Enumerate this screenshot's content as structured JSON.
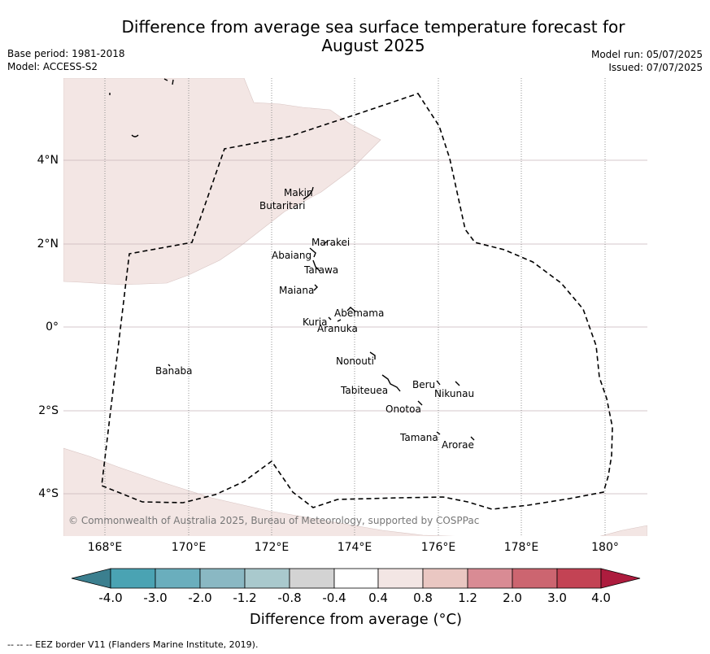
{
  "header": {
    "title_line1": "Difference from average sea surface temperature forecast for",
    "title_line2": "August 2025",
    "base_period": "Base period: 1981-2018",
    "model": "Model: ACCESS-S2",
    "model_run": "Model run: 05/07/2025",
    "issued": "Issued: 07/07/2025"
  },
  "map": {
    "lat_labels": [
      "4°N",
      "2°N",
      "0°",
      "2°S",
      "4°S"
    ],
    "lon_labels": [
      "168°E",
      "170°E",
      "172°E",
      "174°E",
      "176°E",
      "178°E",
      "180°"
    ],
    "places": [
      "Makin",
      "Butaritari",
      "Marakei",
      "Abaiang",
      "Tarawa",
      "Maiana",
      "Abemama",
      "Kuria",
      "Aranuka",
      "Banaba",
      "Nonouti",
      "Beru",
      "Nikunau",
      "Tabiteuea",
      "Onotoa",
      "Tamana",
      "Arorae"
    ],
    "copyright": "© Commonwealth of Australia 2025, Bureau of Meteorology, supported by COSPPac",
    "anomaly_fill_color": "#f3e6e4",
    "land_color": "#000000"
  },
  "colorbar": {
    "tick_labels": [
      "-4.0",
      "-3.0",
      "-2.0",
      "-1.2",
      "-0.8",
      "-0.4",
      "0.4",
      "0.8",
      "1.2",
      "2.0",
      "3.0",
      "4.0"
    ],
    "colors": [
      "#3b7f8f",
      "#4aa3b3",
      "#6aaebd",
      "#8ab8c3",
      "#a9c9cd",
      "#d3d3d3",
      "#ffffff",
      "#f3e6e4",
      "#eac7c2",
      "#d98b94",
      "#cc6570",
      "#c34354",
      "#ad1c3e"
    ],
    "label": "Difference from average (°C)"
  },
  "footer": {
    "eez_note": "--  --  -- EEZ border V11 (Flanders Marine Institute, 2019)."
  }
}
